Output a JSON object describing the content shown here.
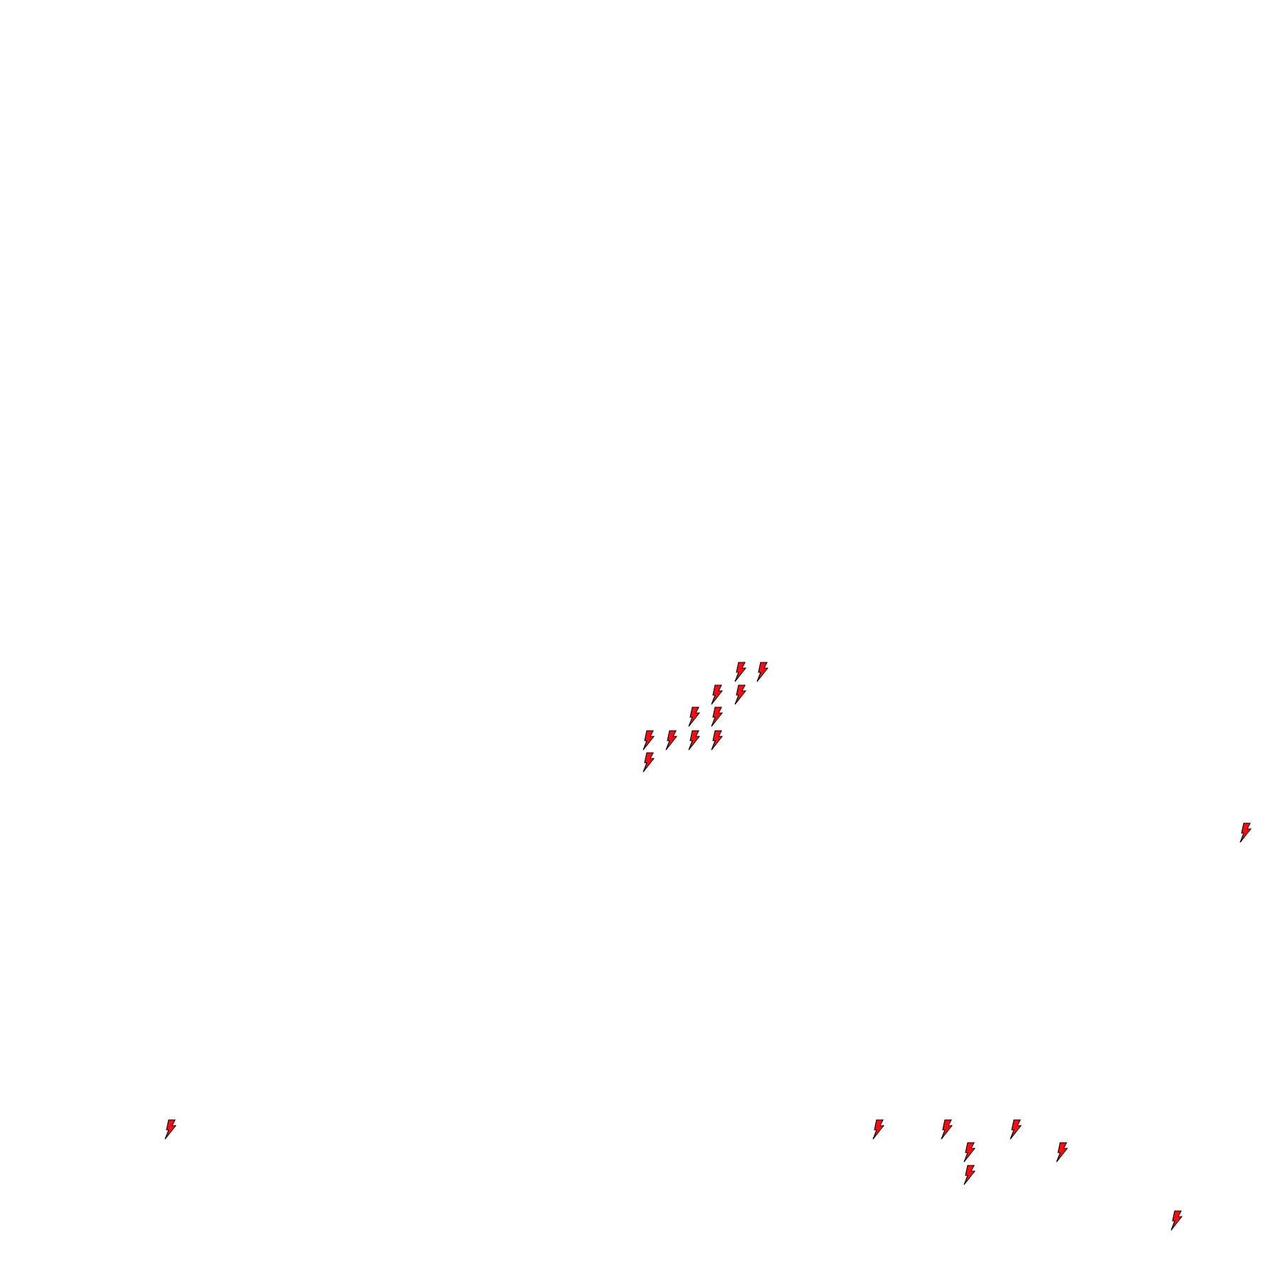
{
  "scene": {
    "background": "#ffffff",
    "icon": "lightning-bolt-icon",
    "icon_count": 22,
    "colors": {
      "fill": "#ff0a14",
      "stroke": "#000000"
    }
  }
}
